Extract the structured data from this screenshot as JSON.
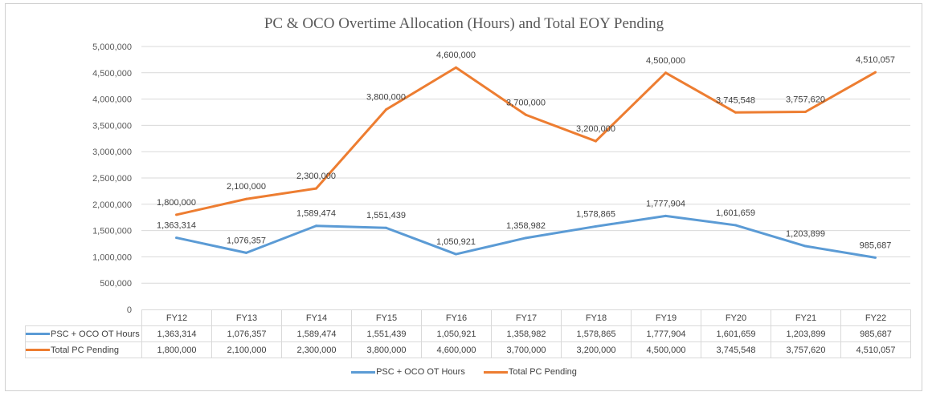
{
  "chart_data": {
    "type": "line",
    "title": "PC & OCO Overtime Allocation (Hours) and Total EOY Pending",
    "categories": [
      "FY12",
      "FY13",
      "FY14",
      "FY15",
      "FY16",
      "FY17",
      "FY18",
      "FY19",
      "FY20",
      "FY21",
      "FY22"
    ],
    "series": [
      {
        "name": "PSC + OCO OT  Hours",
        "color": "#5b9bd5",
        "values": [
          1363314,
          1076357,
          1589474,
          1551439,
          1050921,
          1358982,
          1578865,
          1777904,
          1601659,
          1203899,
          985687
        ],
        "labels": [
          "1,363,314",
          "1,076,357",
          "1,589,474",
          "1,551,439",
          "1,050,921",
          "1,358,982",
          "1,578,865",
          "1,777,904",
          "1,601,659",
          "1,203,899",
          "985,687"
        ]
      },
      {
        "name": "Total PC Pending",
        "color": "#ed7d31",
        "values": [
          1800000,
          2100000,
          2300000,
          3800000,
          4600000,
          3700000,
          3200000,
          4500000,
          3745548,
          3757620,
          4510057
        ],
        "labels": [
          "1,800,000",
          "2,100,000",
          "2,300,000",
          "3,800,000",
          "4,600,000",
          "3,700,000",
          "3,200,000",
          "4,500,000",
          "3,745,548",
          "3,757,620",
          "4,510,057"
        ]
      }
    ],
    "y_ticks": [
      "0",
      "500,000",
      "1,000,000",
      "1,500,000",
      "2,000,000",
      "2,500,000",
      "3,000,000",
      "3,500,000",
      "4,000,000",
      "4,500,000",
      "5,000,000"
    ],
    "ylim": [
      0,
      5000000
    ],
    "xlabel": "",
    "ylabel": "",
    "grid": true,
    "legend_position": "bottom",
    "data_table": true
  }
}
